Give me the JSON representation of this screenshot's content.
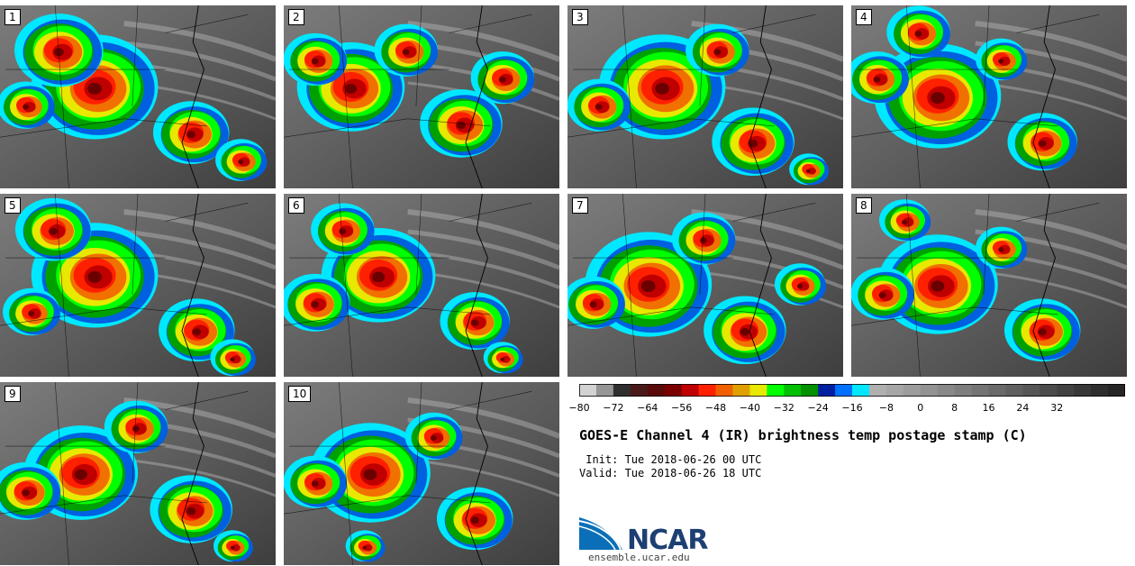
{
  "panels": [
    {
      "label": "1",
      "blobs": [
        [
          0.35,
          0.45,
          0.2
        ],
        [
          0.22,
          0.25,
          0.14
        ],
        [
          0.7,
          0.7,
          0.12
        ],
        [
          0.1,
          0.55,
          0.09
        ],
        [
          0.88,
          0.85,
          0.08
        ]
      ]
    },
    {
      "label": "2",
      "blobs": [
        [
          0.25,
          0.45,
          0.17
        ],
        [
          0.65,
          0.65,
          0.13
        ],
        [
          0.12,
          0.3,
          0.1
        ],
        [
          0.45,
          0.25,
          0.1
        ],
        [
          0.8,
          0.4,
          0.1
        ]
      ]
    },
    {
      "label": "3",
      "blobs": [
        [
          0.35,
          0.45,
          0.2
        ],
        [
          0.68,
          0.75,
          0.13
        ],
        [
          0.12,
          0.55,
          0.1
        ],
        [
          0.55,
          0.25,
          0.1
        ],
        [
          0.88,
          0.9,
          0.06
        ]
      ]
    },
    {
      "label": "4",
      "blobs": [
        [
          0.32,
          0.5,
          0.2
        ],
        [
          0.7,
          0.75,
          0.11
        ],
        [
          0.1,
          0.4,
          0.1
        ],
        [
          0.55,
          0.3,
          0.08
        ],
        [
          0.25,
          0.15,
          0.1
        ]
      ]
    },
    {
      "label": "5",
      "blobs": [
        [
          0.35,
          0.45,
          0.2
        ],
        [
          0.72,
          0.75,
          0.12
        ],
        [
          0.12,
          0.65,
          0.09
        ],
        [
          0.2,
          0.2,
          0.12
        ],
        [
          0.85,
          0.9,
          0.07
        ]
      ]
    },
    {
      "label": "6",
      "blobs": [
        [
          0.35,
          0.45,
          0.18
        ],
        [
          0.12,
          0.6,
          0.11
        ],
        [
          0.7,
          0.7,
          0.11
        ],
        [
          0.22,
          0.2,
          0.1
        ],
        [
          0.8,
          0.9,
          0.06
        ]
      ]
    },
    {
      "label": "7",
      "blobs": [
        [
          0.3,
          0.5,
          0.2
        ],
        [
          0.65,
          0.75,
          0.13
        ],
        [
          0.1,
          0.6,
          0.1
        ],
        [
          0.5,
          0.25,
          0.1
        ],
        [
          0.85,
          0.5,
          0.08
        ]
      ]
    },
    {
      "label": "8",
      "blobs": [
        [
          0.32,
          0.5,
          0.19
        ],
        [
          0.7,
          0.75,
          0.12
        ],
        [
          0.12,
          0.55,
          0.1
        ],
        [
          0.55,
          0.3,
          0.08
        ],
        [
          0.2,
          0.15,
          0.08
        ]
      ]
    },
    {
      "label": "9",
      "blobs": [
        [
          0.3,
          0.5,
          0.18
        ],
        [
          0.7,
          0.7,
          0.13
        ],
        [
          0.1,
          0.6,
          0.11
        ],
        [
          0.5,
          0.25,
          0.1
        ],
        [
          0.85,
          0.9,
          0.06
        ]
      ]
    },
    {
      "label": "10",
      "blobs": [
        [
          0.32,
          0.5,
          0.19
        ],
        [
          0.7,
          0.75,
          0.12
        ],
        [
          0.12,
          0.55,
          0.1
        ],
        [
          0.55,
          0.3,
          0.09
        ],
        [
          0.3,
          0.9,
          0.06
        ]
      ]
    }
  ],
  "colorbar": {
    "colors": [
      "#d3d3d3",
      "#969696",
      "#2f2f2f",
      "#4a1a1a",
      "#5a0a0a",
      "#7a0000",
      "#c00000",
      "#ff2000",
      "#f06000",
      "#e0a000",
      "#e8e800",
      "#00ff00",
      "#00c000",
      "#009000",
      "#0020a0",
      "#0070ff",
      "#00e8ff",
      "#b0b0b0",
      "#a6a6a6",
      "#9c9c9c",
      "#929292",
      "#888888",
      "#7e7e7e",
      "#747474",
      "#6a6a6a",
      "#606060",
      "#565656",
      "#4c4c4c",
      "#424242",
      "#383838",
      "#2e2e2e",
      "#252525"
    ],
    "ticks": [
      "−80",
      "−72",
      "−64",
      "−56",
      "−48",
      "−40",
      "−32",
      "−24",
      "−16",
      "−8",
      "0",
      "8",
      "16",
      "24",
      "32"
    ]
  },
  "title": "GOES-E Channel 4 (IR) brightness temp postage stamp (C)",
  "init_line": " Init: Tue 2018-06-26 00 UTC",
  "valid_line": "Valid: Tue 2018-06-26 18 UTC",
  "logo": {
    "text": "NCAR",
    "url": "ensemble.ucar.edu"
  }
}
